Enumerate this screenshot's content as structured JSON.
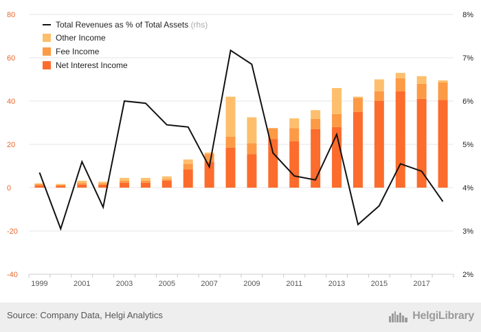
{
  "chart_data": {
    "type": "bar",
    "stacked": true,
    "categories": [
      "1999",
      "2000",
      "2001",
      "2002",
      "2003",
      "2004",
      "2005",
      "2006",
      "2007",
      "2008",
      "2009",
      "2010",
      "2011",
      "2012",
      "2013",
      "2014",
      "2015",
      "2016",
      "2017",
      "2018"
    ],
    "x_tick_labels": [
      "1999",
      "2001",
      "2003",
      "2005",
      "2007",
      "2009",
      "2011",
      "2013",
      "2015",
      "2017"
    ],
    "series": [
      {
        "name": "Net Interest Income",
        "values": [
          1.0,
          0.8,
          1.5,
          1.3,
          2.3,
          2.3,
          3.2,
          8.5,
          12.0,
          18.5,
          15.5,
          22.5,
          21.5,
          27.0,
          28.0,
          35.0,
          40.0,
          44.5,
          41.0,
          40.5
        ]
      },
      {
        "name": "Fee Income",
        "values": [
          0.6,
          0.5,
          0.7,
          0.7,
          0.9,
          0.9,
          0.7,
          2.5,
          3.5,
          5.0,
          5.0,
          5.0,
          6.0,
          4.8,
          6.0,
          6.5,
          4.5,
          6.0,
          7.0,
          9.0
        ]
      },
      {
        "name": "Other Income",
        "values": [
          0.4,
          0.4,
          1.0,
          0.7,
          1.3,
          1.3,
          1.3,
          2.0,
          0.7,
          18.5,
          12.0,
          0.0,
          4.5,
          4.0,
          12.0,
          0.5,
          5.5,
          2.5,
          3.5,
          -1.0
        ]
      }
    ],
    "line": {
      "name": "Total Revenues as % of Total Assets",
      "suffix": "(rhs)",
      "values": [
        4.35,
        3.05,
        4.6,
        3.55,
        6.0,
        5.95,
        5.45,
        5.4,
        4.48,
        7.17,
        6.85,
        4.8,
        4.27,
        4.18,
        5.23,
        3.15,
        3.58,
        4.55,
        4.38,
        3.68
      ]
    },
    "y_left": {
      "lim": [
        -40,
        80
      ],
      "ticks": [
        "80",
        "60",
        "40",
        "20",
        "0",
        "-20",
        "-40"
      ]
    },
    "y_right": {
      "lim": [
        2,
        8
      ],
      "ticks": [
        "8%",
        "7%",
        "6%",
        "5%",
        "4%",
        "3%",
        "2%"
      ]
    },
    "grid": true,
    "legend_placement": "top-left"
  },
  "colors": {
    "net_interest": "#fc6c2c",
    "fee": "#fd9a45",
    "other": "#fdbf6d",
    "line": "#111111",
    "left_axis_labels": "#e8672b",
    "right_axis_labels": "#222222",
    "grid": "#e6e6e6"
  },
  "footer": {
    "source": "Source: Company Data, Helgi Analytics",
    "brand": "HelgiLibrary",
    "brand_icon": "city-skyline-icon"
  }
}
